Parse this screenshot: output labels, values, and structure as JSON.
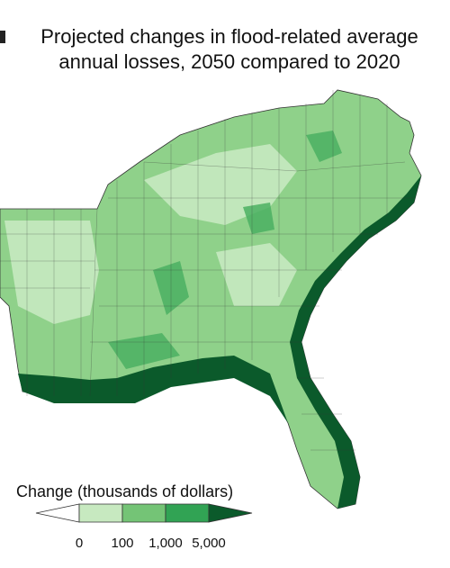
{
  "title": [
    "Projected changes in flood-related average",
    "annual losses, 2050 compared to 2020"
  ],
  "legend": {
    "title": "Change (thousands of dollars)",
    "ticks": [
      "0",
      "100",
      "1,000",
      "5,000"
    ],
    "colors": [
      "#ffffff",
      "#c7e9c0",
      "#74c476",
      "#31a354",
      "#0b5a2b"
    ]
  }
}
